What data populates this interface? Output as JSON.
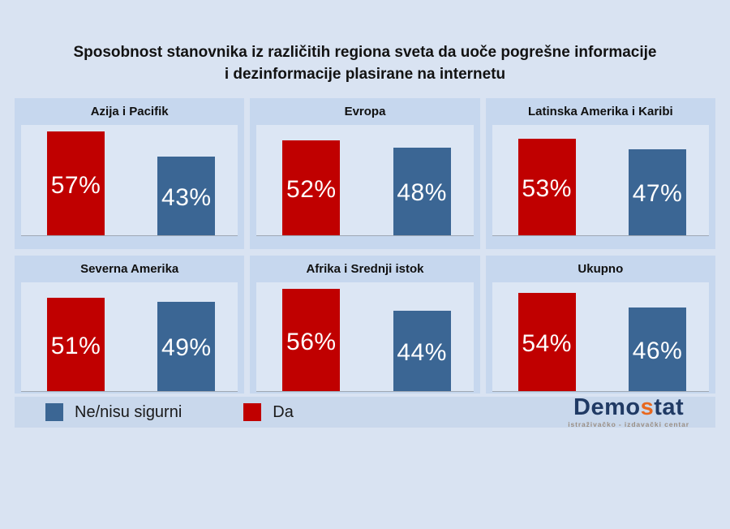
{
  "title": "Sposobnost stanovnika iz različitih regiona sveta da uoče pogrešne informacije\ni dezinformacije plasirane na internetu",
  "colors": {
    "background": "#D9E3F2",
    "panel": "#C6D7EE",
    "plot": "#DCE6F4",
    "da": "#C00000",
    "ne_nisu_sigurni": "#3B6694",
    "axis": "#9FA8B4",
    "legend_band": "#C9D8EC",
    "logo_navy": "#203A64",
    "logo_orange": "#E8681F"
  },
  "chart_data": {
    "type": "bar",
    "unit": "%",
    "ylim": [
      0,
      62
    ],
    "grid": false,
    "legend_position": "bottom-left",
    "series_names": [
      "Da",
      "Ne/nisu sigurni"
    ],
    "panels": [
      {
        "region": "Azija i Pacifik",
        "da": 57,
        "ne": 43
      },
      {
        "region": "Evropa",
        "da": 52,
        "ne": 48
      },
      {
        "region": "Latinska Amerika i Karibi",
        "da": 53,
        "ne": 47
      },
      {
        "region": "Severna Amerika",
        "da": 51,
        "ne": 49
      },
      {
        "region": "Afrika i Srednji istok",
        "da": 56,
        "ne": 44
      },
      {
        "region": "Ukupno",
        "da": 54,
        "ne": 46
      }
    ]
  },
  "legend": [
    {
      "label": "Ne/nisu sigurni",
      "color": "#3B6694"
    },
    {
      "label": "Da",
      "color": "#C00000"
    }
  ],
  "logo": {
    "prefix": "Demo",
    "highlight": "s",
    "suffix": "tat",
    "tagline": "istraživačko - izdavački  centar"
  }
}
